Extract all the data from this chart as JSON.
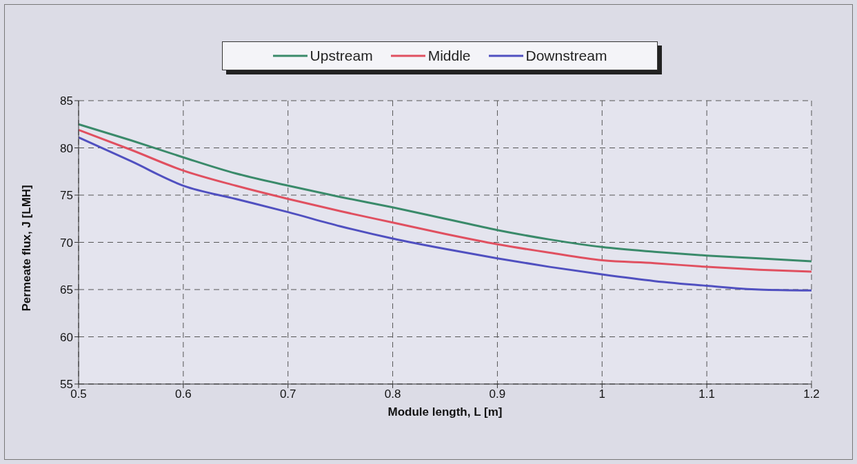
{
  "chart_data": {
    "type": "line",
    "xlabel": "Module length, L [m]",
    "ylabel": "Permeate flux, J [LMH]",
    "x": [
      0.5,
      0.55,
      0.6,
      0.65,
      0.7,
      0.75,
      0.8,
      0.85,
      0.9,
      0.95,
      1.0,
      1.05,
      1.1,
      1.15,
      1.2
    ],
    "series": [
      {
        "name": "Upstream",
        "color": "#3a8a6a",
        "values": [
          82.5,
          80.8,
          79.0,
          77.3,
          76.0,
          74.8,
          73.7,
          72.5,
          71.3,
          70.3,
          69.5,
          69.0,
          68.6,
          68.3,
          68.0
        ]
      },
      {
        "name": "Middle",
        "color": "#e05060",
        "values": [
          81.9,
          79.8,
          77.6,
          76.0,
          74.6,
          73.3,
          72.1,
          70.9,
          69.8,
          68.9,
          68.1,
          67.8,
          67.4,
          67.1,
          66.9
        ]
      },
      {
        "name": "Downstream",
        "color": "#5050c0",
        "values": [
          81.1,
          78.6,
          76.0,
          74.6,
          73.2,
          71.7,
          70.4,
          69.3,
          68.3,
          67.4,
          66.6,
          65.9,
          65.4,
          65.0,
          64.9
        ]
      }
    ],
    "xlim": [
      0.5,
      1.2
    ],
    "xticks": [
      0.5,
      0.6,
      0.7,
      0.8,
      0.9,
      1,
      1.1,
      1.2
    ],
    "ylim": [
      55,
      85
    ],
    "yticks": [
      55,
      60,
      65,
      70,
      75,
      80,
      85
    ],
    "grid": true,
    "legend": "top",
    "marker": "none",
    "line_style": "solid"
  }
}
